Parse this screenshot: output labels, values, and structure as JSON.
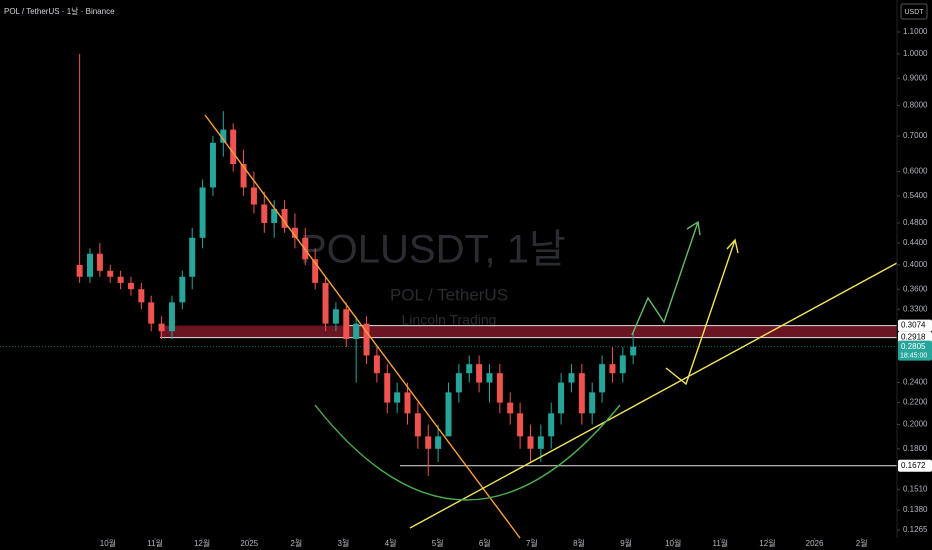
{
  "header": "POL / TetherUS · 1날 · Binance",
  "currency": "USDT",
  "watermark": {
    "symbol": "POLUSDT, 1날",
    "name": "POL / TetherUS",
    "author": "Lincoln Trading"
  },
  "chart_data": {
    "type": "candlestick",
    "log_scale": true,
    "up_color": "#26a69a",
    "down_color": "#ef5350",
    "x": [
      -0.6,
      -0.38,
      -0.17,
      0.05,
      0.27,
      0.49,
      0.71,
      0.92,
      1.14,
      1.36,
      1.58,
      1.79,
      2.01,
      2.23,
      2.45,
      2.66,
      2.88,
      3.1,
      3.32,
      3.53,
      3.75,
      3.97,
      4.19,
      4.4,
      4.62,
      4.84,
      5.06,
      5.27,
      5.49,
      5.71,
      5.93,
      6.14,
      6.36,
      6.58,
      6.8,
      7.01,
      7.23,
      7.45,
      7.67,
      7.88,
      8.1,
      8.32,
      8.54,
      8.75,
      8.97,
      9.19,
      9.41,
      9.62,
      9.84,
      10.06,
      10.28,
      10.49,
      10.71,
      10.93,
      11.15
    ],
    "open": [
      0.4,
      0.38,
      0.42,
      0.39,
      0.38,
      0.37,
      0.36,
      0.34,
      0.31,
      0.3,
      0.34,
      0.38,
      0.45,
      0.56,
      0.68,
      0.72,
      0.62,
      0.56,
      0.52,
      0.48,
      0.51,
      0.47,
      0.45,
      0.41,
      0.37,
      0.31,
      0.33,
      0.29,
      0.31,
      0.27,
      0.25,
      0.22,
      0.23,
      0.21,
      0.19,
      0.18,
      0.19,
      0.23,
      0.25,
      0.26,
      0.24,
      0.25,
      0.22,
      0.21,
      0.19,
      0.18,
      0.19,
      0.21,
      0.24,
      0.25,
      0.21,
      0.23,
      0.26,
      0.25,
      0.27
    ],
    "high": [
      1.0,
      0.43,
      0.44,
      0.4,
      0.39,
      0.38,
      0.37,
      0.35,
      0.32,
      0.35,
      0.39,
      0.47,
      0.58,
      0.7,
      0.78,
      0.74,
      0.66,
      0.6,
      0.55,
      0.53,
      0.53,
      0.5,
      0.47,
      0.43,
      0.38,
      0.34,
      0.34,
      0.32,
      0.32,
      0.28,
      0.26,
      0.24,
      0.24,
      0.22,
      0.2,
      0.2,
      0.24,
      0.26,
      0.27,
      0.27,
      0.26,
      0.26,
      0.23,
      0.22,
      0.2,
      0.2,
      0.22,
      0.25,
      0.26,
      0.26,
      0.24,
      0.27,
      0.28,
      0.28,
      0.3
    ],
    "low": [
      0.37,
      0.37,
      0.38,
      0.37,
      0.36,
      0.35,
      0.33,
      0.3,
      0.29,
      0.29,
      0.33,
      0.36,
      0.43,
      0.54,
      0.64,
      0.6,
      0.54,
      0.5,
      0.46,
      0.45,
      0.46,
      0.43,
      0.4,
      0.36,
      0.3,
      0.3,
      0.28,
      0.24,
      0.26,
      0.24,
      0.21,
      0.21,
      0.2,
      0.18,
      0.16,
      0.17,
      0.19,
      0.22,
      0.24,
      0.23,
      0.22,
      0.21,
      0.2,
      0.18,
      0.17,
      0.17,
      0.18,
      0.2,
      0.23,
      0.2,
      0.2,
      0.22,
      0.24,
      0.24,
      0.26
    ],
    "close": [
      0.38,
      0.42,
      0.39,
      0.38,
      0.37,
      0.36,
      0.34,
      0.31,
      0.3,
      0.34,
      0.38,
      0.45,
      0.56,
      0.68,
      0.72,
      0.62,
      0.56,
      0.52,
      0.48,
      0.51,
      0.47,
      0.45,
      0.41,
      0.37,
      0.31,
      0.33,
      0.29,
      0.31,
      0.27,
      0.25,
      0.22,
      0.23,
      0.21,
      0.19,
      0.18,
      0.19,
      0.23,
      0.25,
      0.26,
      0.24,
      0.25,
      0.22,
      0.21,
      0.19,
      0.18,
      0.19,
      0.21,
      0.24,
      0.25,
      0.21,
      0.23,
      0.26,
      0.25,
      0.27,
      0.2805
    ],
    "ylim": [
      0.1222,
      1.264
    ],
    "yticks": [
      {
        "value": 1.1,
        "label": "1.1000"
      },
      {
        "value": 1.0,
        "label": "1.0000"
      },
      {
        "value": 0.9,
        "label": "0.9000"
      },
      {
        "value": 0.8,
        "label": "0.8000"
      },
      {
        "value": 0.7,
        "label": "0.7000"
      },
      {
        "value": 0.6,
        "label": "0.6000"
      },
      {
        "value": 0.54,
        "label": "0.5400"
      },
      {
        "value": 0.48,
        "label": "0.4800"
      },
      {
        "value": 0.44,
        "label": "0.4400"
      },
      {
        "value": 0.4,
        "label": "0.4000"
      },
      {
        "value": 0.36,
        "label": "0.3600"
      },
      {
        "value": 0.33,
        "label": "0.3300"
      },
      {
        "value": 0.24,
        "label": "0.2400"
      },
      {
        "value": 0.22,
        "label": "0.2200"
      },
      {
        "value": 0.2,
        "label": "0.2000"
      },
      {
        "value": 0.18,
        "label": "0.1800"
      },
      {
        "value": 0.151,
        "label": "0.1510"
      },
      {
        "value": 0.138,
        "label": "0.1380"
      },
      0.1265
    ],
    "xlim": [
      -2.29,
      16.75
    ],
    "xticks": [
      {
        "value": 0,
        "label": "10월"
      },
      {
        "value": 1,
        "label": "11월"
      },
      {
        "value": 2,
        "label": "12월"
      },
      {
        "value": 3,
        "label": "2025"
      },
      {
        "value": 4,
        "label": "2월"
      },
      {
        "value": 5,
        "label": "3월"
      },
      {
        "value": 6,
        "label": "4월"
      },
      {
        "value": 7,
        "label": "5월"
      },
      {
        "value": 8,
        "label": "6월"
      },
      {
        "value": 9,
        "label": "7월"
      },
      {
        "value": 10,
        "label": "8월"
      },
      {
        "value": 11,
        "label": "9월"
      },
      {
        "value": 12,
        "label": "10월"
      },
      {
        "value": 13,
        "label": "11월"
      },
      {
        "value": 14,
        "label": "12월"
      },
      {
        "value": 15,
        "label": "2026"
      },
      {
        "value": 16,
        "label": "2월"
      }
    ],
    "price_lines": [
      0.3074,
      0.2918,
      0.1672
    ],
    "zone_color": "#8e1c2c",
    "last_price": 0.2805,
    "countdown": "18:45:00"
  }
}
